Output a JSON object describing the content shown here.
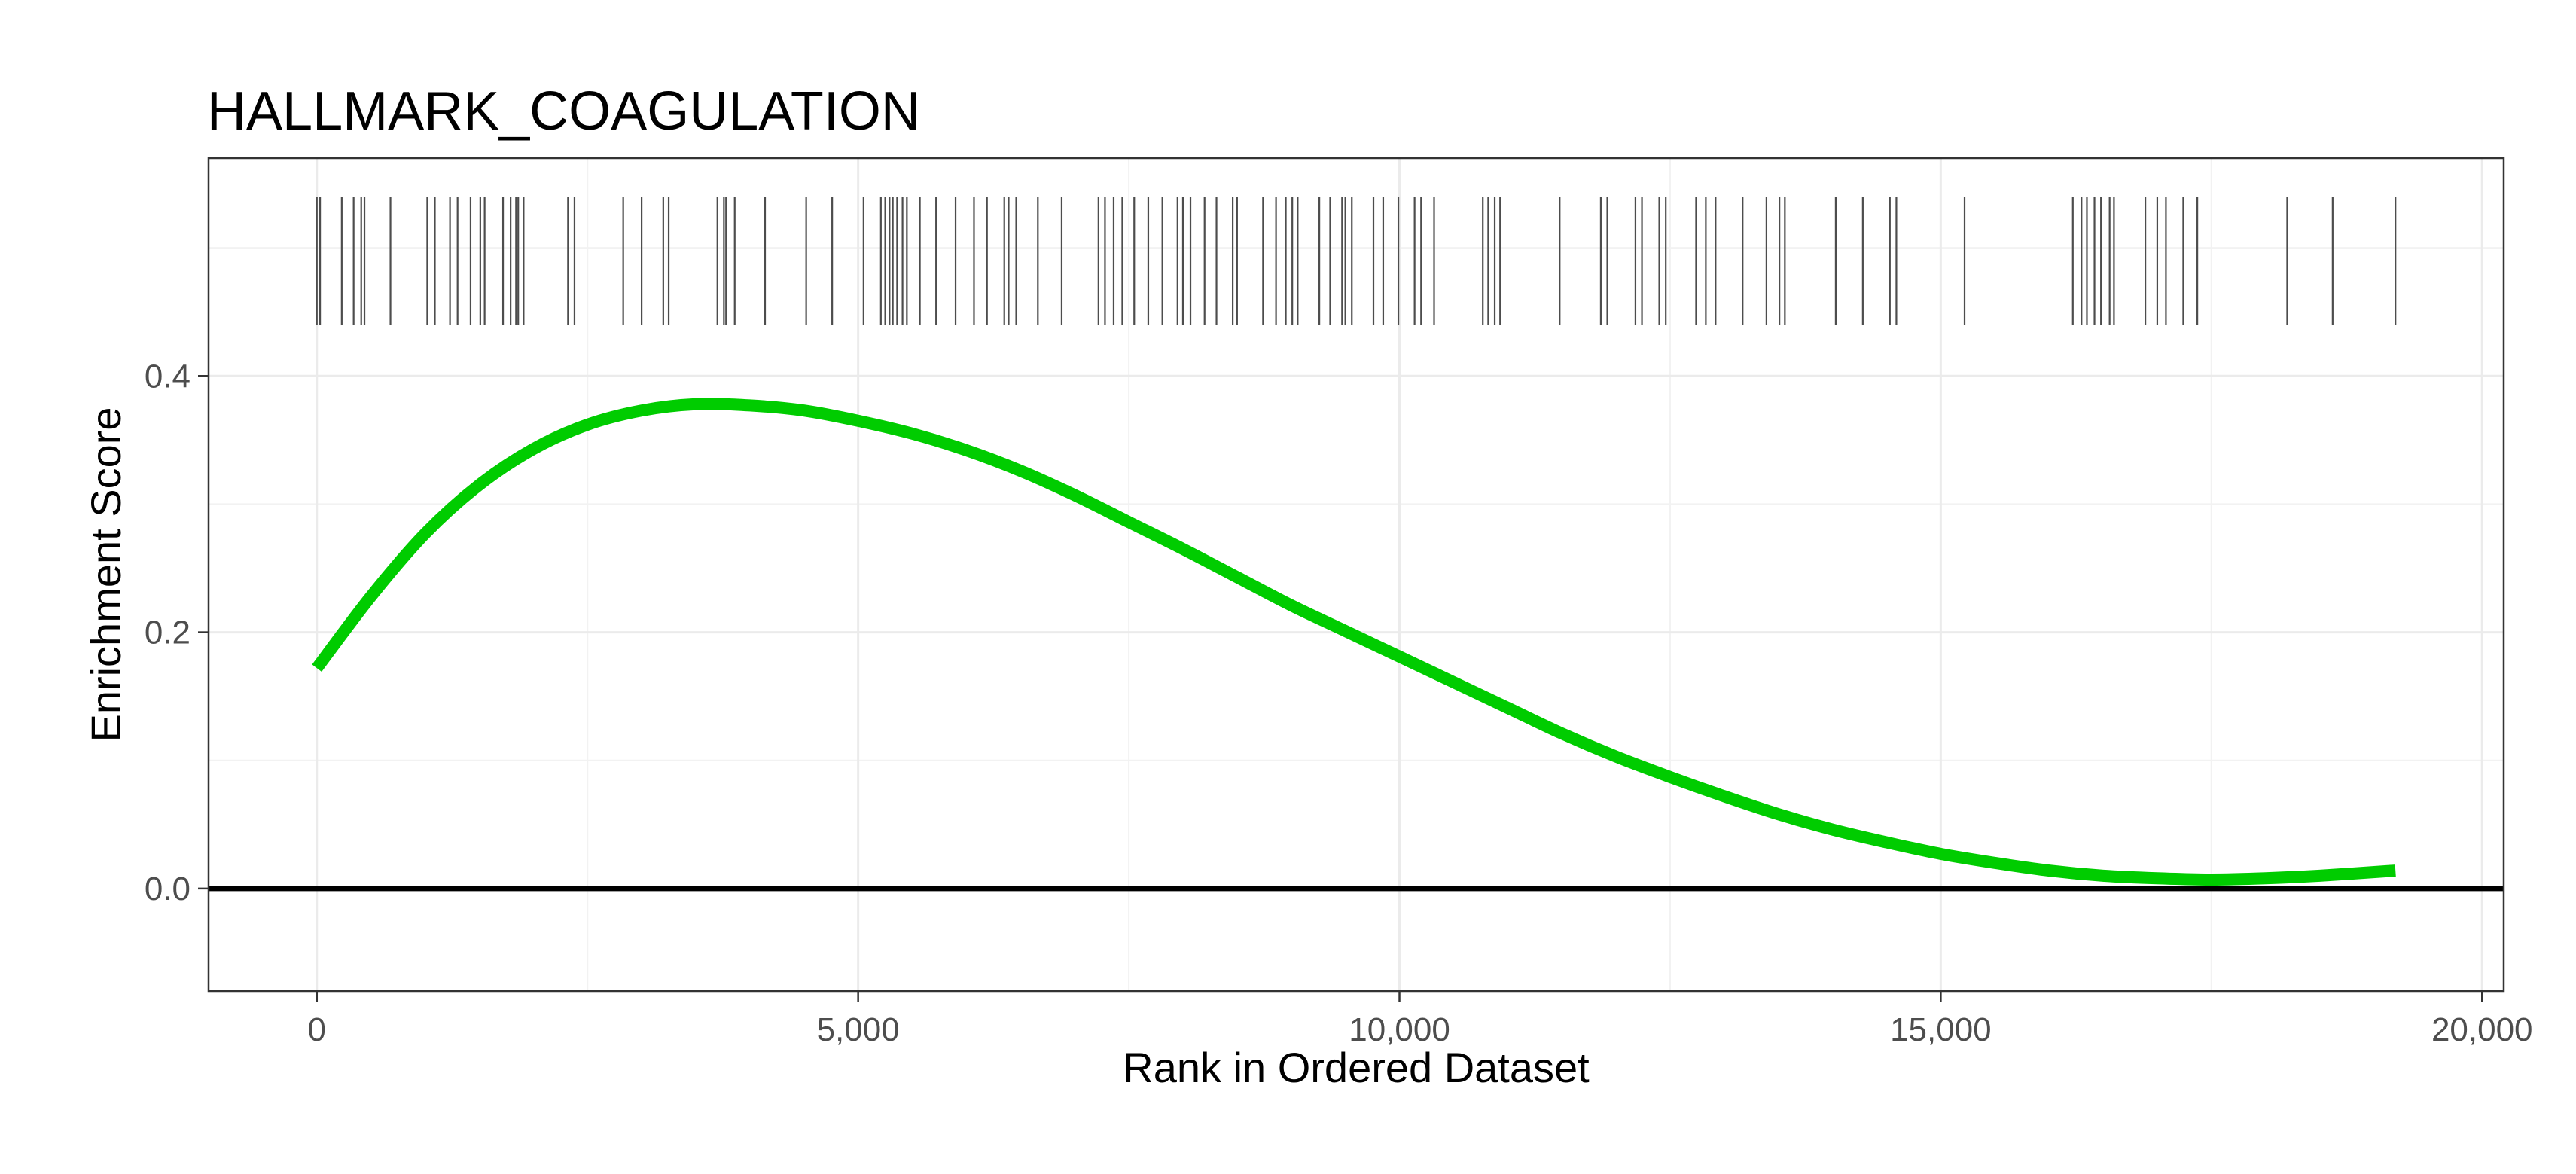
{
  "chart_data": {
    "type": "line",
    "title": "HALLMARK_COAGULATION",
    "xlabel": "Rank in Ordered Dataset",
    "ylabel": "Enrichment Score",
    "xlim": [
      -1000,
      20200
    ],
    "ylim": [
      -0.08,
      0.57
    ],
    "x_ticks": [
      0,
      5000,
      10000,
      15000,
      20000
    ],
    "x_tick_labels": [
      "0",
      "5,000",
      "10,000",
      "15,000",
      "20,000"
    ],
    "y_ticks": [
      0.0,
      0.2,
      0.4
    ],
    "y_tick_labels": [
      "0.0",
      "0.2",
      "0.4"
    ],
    "grid": true,
    "zero_line": 0,
    "series": [
      {
        "color": "#00cc00",
        "x": [
          0,
          500,
          1000,
          1500,
          2000,
          2500,
          3000,
          3500,
          4000,
          4500,
          5000,
          5500,
          6000,
          6500,
          7000,
          7500,
          8000,
          8500,
          9000,
          9500,
          10000,
          10500,
          11000,
          11500,
          12000,
          12500,
          13000,
          13500,
          14000,
          14500,
          15000,
          15500,
          16000,
          16500,
          17000,
          17500,
          18000,
          18500,
          19200
        ],
        "y": [
          0.172,
          0.228,
          0.277,
          0.315,
          0.343,
          0.362,
          0.373,
          0.378,
          0.377,
          0.373,
          0.365,
          0.355,
          0.342,
          0.326,
          0.307,
          0.286,
          0.265,
          0.243,
          0.221,
          0.201,
          0.181,
          0.161,
          0.141,
          0.121,
          0.103,
          0.087,
          0.072,
          0.058,
          0.046,
          0.036,
          0.027,
          0.02,
          0.014,
          0.01,
          0.008,
          0.007,
          0.008,
          0.01,
          0.014
        ]
      }
    ],
    "gene_hits": [
      0,
      30,
      230,
      340,
      410,
      440,
      680,
      1020,
      1090,
      1230,
      1300,
      1420,
      1510,
      1550,
      1720,
      1790,
      1840,
      1860,
      1910,
      2320,
      2380,
      2830,
      3000,
      3200,
      3250,
      3700,
      3760,
      3780,
      3860,
      4140,
      4520,
      4760,
      5050,
      5210,
      5250,
      5290,
      5320,
      5360,
      5410,
      5450,
      5570,
      5720,
      5900,
      6070,
      6190,
      6350,
      6390,
      6460,
      6660,
      6880,
      7220,
      7280,
      7360,
      7440,
      7550,
      7680,
      7810,
      7950,
      8000,
      8070,
      8200,
      8310,
      8460,
      8500,
      8740,
      8860,
      8950,
      9010,
      9060,
      9260,
      9360,
      9470,
      9500,
      9560,
      9760,
      9850,
      9990,
      10140,
      10200,
      10320,
      10770,
      10820,
      10880,
      10930,
      11480,
      11860,
      11920,
      12180,
      12240,
      12400,
      12460,
      12740,
      12830,
      12920,
      13170,
      13390,
      13510,
      13560,
      14030,
      14280,
      14530,
      14590,
      15220,
      16220,
      16300,
      16350,
      16420,
      16480,
      16560,
      16600,
      16890,
      17000,
      17080,
      17240,
      17370,
      18200,
      18620,
      19200
    ]
  }
}
